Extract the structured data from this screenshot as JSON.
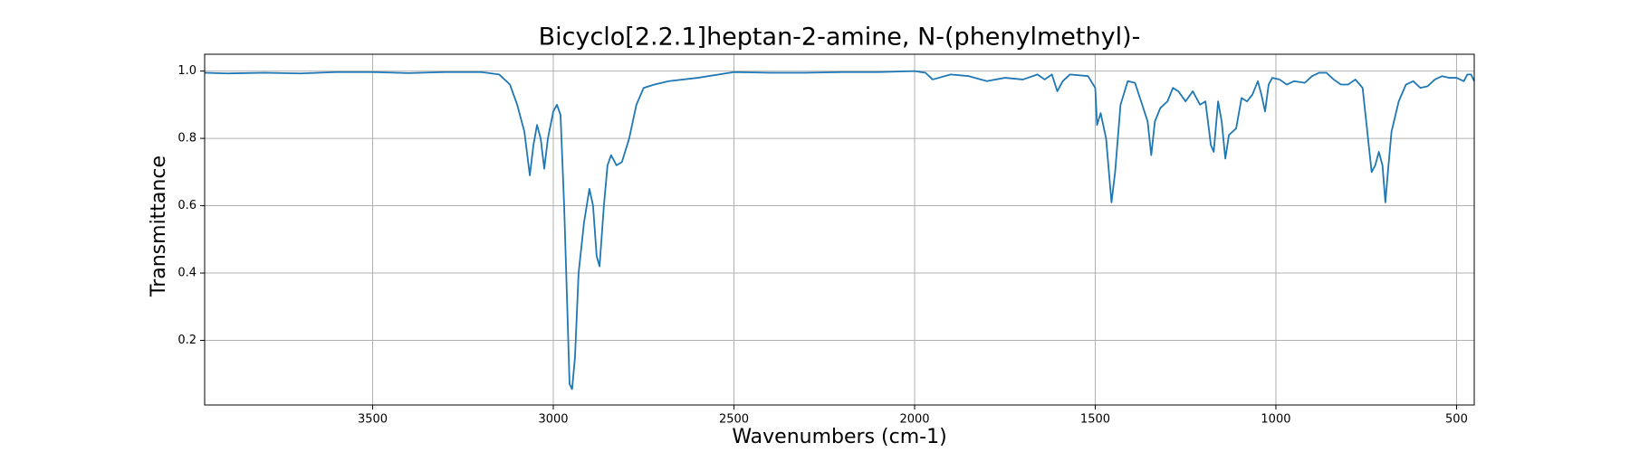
{
  "chart_data": {
    "type": "line",
    "title": "Bicyclo[2.2.1]heptan-2-amine, N-(phenylmethyl)-",
    "x_label": "Wavenumbers (cm-1)",
    "y_label": "Transmittance",
    "color": "#1f77b4",
    "grid": true,
    "xlim": [
      3965,
      451
    ],
    "ylim": [
      0.008,
      1.05
    ],
    "xticks": [
      3500,
      3000,
      2500,
      2000,
      1500,
      1000,
      500
    ],
    "yticks": [
      0.2,
      0.4,
      0.6,
      0.8,
      {
        "value": 1,
        "label": "1.0"
      }
    ],
    "x": [
      3965,
      3900,
      3800,
      3700,
      3600,
      3500,
      3400,
      3300,
      3200,
      3150,
      3120,
      3100,
      3080,
      3065,
      3055,
      3045,
      3035,
      3025,
      3015,
      3000,
      2990,
      2980,
      2970,
      2960,
      2955,
      2948,
      2940,
      2930,
      2915,
      2900,
      2890,
      2880,
      2872,
      2860,
      2850,
      2840,
      2825,
      2810,
      2790,
      2770,
      2750,
      2720,
      2680,
      2600,
      2500,
      2400,
      2300,
      2200,
      2100,
      2000,
      1970,
      1950,
      1900,
      1850,
      1800,
      1750,
      1700,
      1660,
      1640,
      1620,
      1605,
      1590,
      1570,
      1520,
      1500,
      1495,
      1485,
      1470,
      1455,
      1445,
      1430,
      1410,
      1390,
      1370,
      1355,
      1345,
      1335,
      1320,
      1300,
      1285,
      1270,
      1250,
      1230,
      1210,
      1195,
      1180,
      1172,
      1160,
      1150,
      1140,
      1130,
      1110,
      1095,
      1080,
      1065,
      1050,
      1040,
      1030,
      1020,
      1010,
      990,
      970,
      950,
      920,
      900,
      880,
      860,
      840,
      820,
      800,
      780,
      760,
      745,
      735,
      725,
      715,
      705,
      697,
      690,
      680,
      660,
      640,
      620,
      600,
      580,
      560,
      540,
      520,
      500,
      480,
      470,
      460,
      451
    ],
    "values": [
      0.995,
      0.993,
      0.995,
      0.993,
      0.997,
      0.997,
      0.994,
      0.997,
      0.997,
      0.99,
      0.96,
      0.9,
      0.82,
      0.69,
      0.78,
      0.84,
      0.8,
      0.71,
      0.8,
      0.88,
      0.9,
      0.87,
      0.6,
      0.25,
      0.07,
      0.055,
      0.15,
      0.4,
      0.55,
      0.65,
      0.6,
      0.45,
      0.42,
      0.6,
      0.72,
      0.75,
      0.72,
      0.73,
      0.8,
      0.9,
      0.95,
      0.96,
      0.97,
      0.98,
      0.997,
      0.995,
      0.995,
      0.997,
      0.997,
      1.0,
      0.995,
      0.975,
      0.99,
      0.985,
      0.97,
      0.98,
      0.975,
      0.99,
      0.975,
      0.99,
      0.94,
      0.97,
      0.99,
      0.985,
      0.95,
      0.84,
      0.875,
      0.8,
      0.61,
      0.7,
      0.9,
      0.97,
      0.965,
      0.9,
      0.85,
      0.75,
      0.85,
      0.89,
      0.91,
      0.95,
      0.94,
      0.91,
      0.94,
      0.9,
      0.91,
      0.78,
      0.76,
      0.91,
      0.85,
      0.74,
      0.81,
      0.83,
      0.92,
      0.91,
      0.93,
      0.97,
      0.93,
      0.88,
      0.96,
      0.98,
      0.975,
      0.96,
      0.97,
      0.965,
      0.985,
      0.995,
      0.995,
      0.975,
      0.96,
      0.96,
      0.975,
      0.95,
      0.8,
      0.7,
      0.72,
      0.76,
      0.72,
      0.61,
      0.7,
      0.82,
      0.91,
      0.96,
      0.97,
      0.95,
      0.955,
      0.975,
      0.985,
      0.98,
      0.98,
      0.97,
      0.99,
      0.99,
      0.97
    ]
  }
}
